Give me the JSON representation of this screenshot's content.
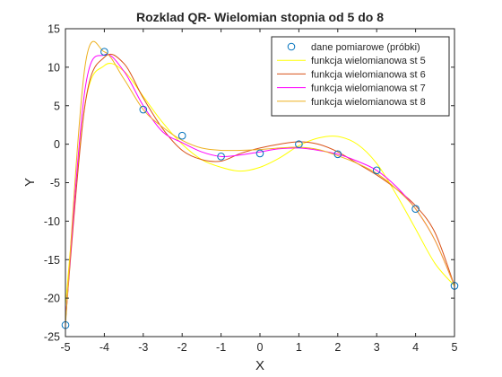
{
  "chart_data": {
    "type": "line",
    "title": "Rozklad QR- Wielomian stopnia od 5 do 8",
    "xlabel": "X",
    "ylabel": "Y",
    "xlim": [
      -5,
      5
    ],
    "ylim": [
      -25,
      15
    ],
    "xticks": [
      -5,
      -4,
      -3,
      -2,
      -1,
      0,
      1,
      2,
      3,
      4,
      5
    ],
    "yticks": [
      -25,
      -20,
      -15,
      -10,
      -5,
      0,
      5,
      10,
      15
    ],
    "grid": false,
    "legend_position": "top-right",
    "samples": {
      "name": "dane pomiarowe (próbki)",
      "color": "#0072bd",
      "x": [
        -5,
        -4,
        -3,
        -2,
        -1,
        0,
        1,
        2,
        3,
        4,
        5
      ],
      "y": [
        -23.5,
        12.0,
        4.5,
        1.1,
        -1.6,
        -1.2,
        0.0,
        -1.3,
        -3.4,
        -8.4,
        -18.4
      ]
    },
    "series": [
      {
        "name": "funkcja wielomianowa st 5",
        "color": "#ffff00",
        "x": [
          -5,
          -4.5,
          -4,
          -3.5,
          -3,
          -2.5,
          -2,
          -1.5,
          -1,
          -0.5,
          0,
          0.5,
          1,
          1.5,
          2,
          2.5,
          3,
          3.5,
          4,
          4.5,
          5
        ],
        "y": [
          -21.0,
          5.0,
          10.2,
          9.5,
          6.2,
          2.8,
          0.0,
          -2.0,
          -3.0,
          -3.5,
          -3.0,
          -1.8,
          -0.2,
          0.8,
          1.0,
          0.0,
          -2.5,
          -6.5,
          -11.0,
          -15.5,
          -18.4
        ]
      },
      {
        "name": "funkcja wielomianowa st 6",
        "color": "#d95319",
        "x": [
          -5,
          -4.5,
          -4,
          -3.5,
          -3,
          -2.5,
          -2,
          -1.5,
          -1,
          -0.5,
          0,
          0.5,
          1,
          1.5,
          2,
          2.5,
          3,
          3.5,
          4,
          4.5,
          5
        ],
        "y": [
          -23.0,
          5.0,
          11.3,
          10.5,
          6.0,
          2.0,
          -0.8,
          -2.0,
          -2.2,
          -1.2,
          -0.5,
          0.0,
          0.3,
          0.0,
          -1.0,
          -2.5,
          -4.0,
          -5.8,
          -8.0,
          -11.5,
          -18.4
        ]
      },
      {
        "name": "funkcja wielomianowa st 7",
        "color": "#ff00ff",
        "x": [
          -5,
          -4.5,
          -4,
          -3.5,
          -3,
          -2.5,
          -2,
          -1.5,
          -1,
          -0.5,
          0,
          0.5,
          1,
          1.5,
          2,
          2.5,
          3,
          3.5,
          4,
          4.5,
          5
        ],
        "y": [
          -23.0,
          7.0,
          11.6,
          9.5,
          5.0,
          1.6,
          0.2,
          -1.0,
          -1.6,
          -1.4,
          -1.0,
          -0.6,
          -0.5,
          -0.8,
          -1.3,
          -2.2,
          -3.4,
          -5.5,
          -8.4,
          -12.5,
          -18.4
        ]
      },
      {
        "name": "funkcja wielomianowa st 8",
        "color": "#edb120",
        "x": [
          -5,
          -4.5,
          -4,
          -3.5,
          -3,
          -2.5,
          -2,
          -1.5,
          -1,
          -0.5,
          0,
          0.5,
          1,
          1.5,
          2,
          2.5,
          3,
          3.5,
          4,
          4.5,
          5
        ],
        "y": [
          -23.5,
          10.0,
          12.0,
          8.5,
          4.5,
          2.2,
          0.5,
          -0.5,
          -0.8,
          -0.8,
          -0.7,
          -0.5,
          -0.4,
          -0.7,
          -1.5,
          -2.5,
          -3.8,
          -5.8,
          -8.4,
          -12.5,
          -18.4
        ]
      }
    ]
  }
}
